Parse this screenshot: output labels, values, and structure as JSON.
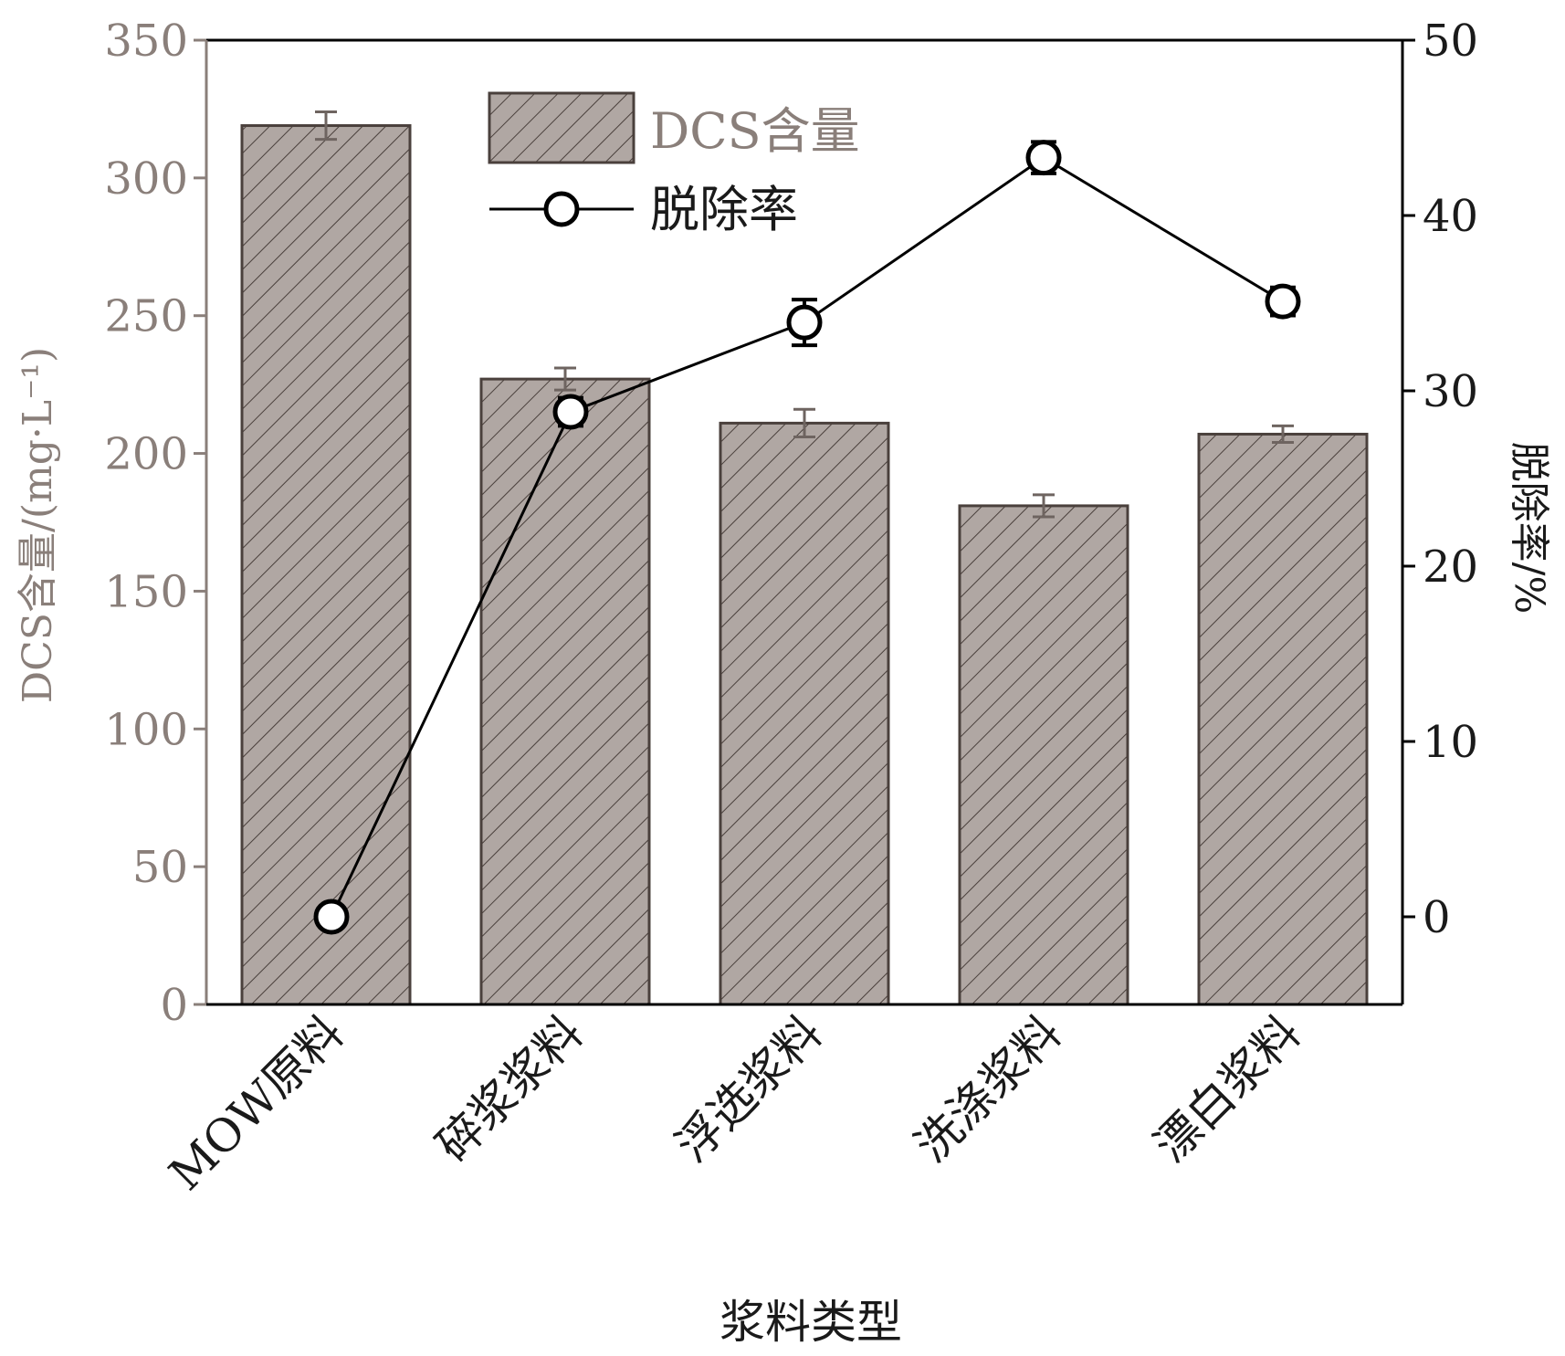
{
  "chart_data": {
    "type": "bar",
    "categories": [
      "MOW原料",
      "碎浆浆料",
      "浮选浆料",
      "洗涤浆料",
      "漂白浆料"
    ],
    "xlabel": "浆料类型",
    "series": [
      {
        "name": "DCS含量",
        "type": "bar",
        "axis": "left",
        "values": [
          319,
          227,
          211,
          181,
          207
        ],
        "errors": [
          5,
          4,
          5,
          4,
          3
        ]
      },
      {
        "name": "脱除率",
        "type": "line",
        "axis": "right",
        "values": [
          0,
          28.8,
          33.9,
          43.3,
          35.1
        ],
        "errors": [
          0,
          0.8,
          1.3,
          0.9,
          0.8
        ]
      }
    ],
    "ylabel": "DCS含量/(mg·L⁻¹)",
    "ylim": [
      0,
      350
    ],
    "yticks": [
      0,
      50,
      100,
      150,
      200,
      250,
      300,
      350
    ],
    "y2label": "脱除率/%",
    "y2lim": [
      -5,
      50
    ],
    "y2ticks": [
      0,
      10,
      20,
      30,
      40,
      50
    ],
    "legend_position": "top-left",
    "grid": false,
    "colors": {
      "bar_fill": "#b0a7a3",
      "bar_edge": "#4a403c",
      "hatch": "#4a403c",
      "line": "#000000",
      "left_axis_text": "#8a7f7a",
      "right_axis_text": "#1a1a1a"
    }
  }
}
